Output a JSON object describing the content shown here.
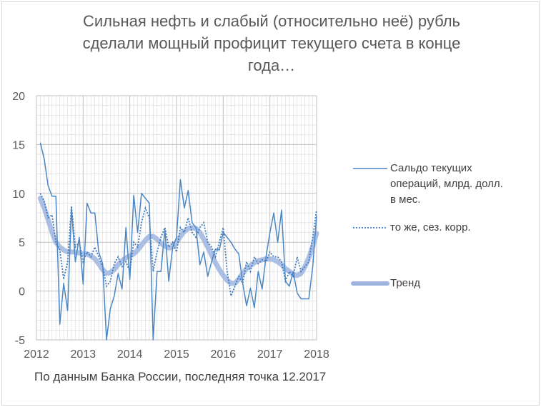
{
  "title_lines": [
    "Сильная нефть и слабый (относительно неё) рубль",
    "сделали мощный профицит текущего счета в конце",
    "года…"
  ],
  "source_note": "По данным Банка России, последняя точка 12.2017",
  "colors": {
    "monthly": "#4a86c5",
    "seasonal": "#3f7ac0",
    "trend": "#9db4e0",
    "grid": "#d9d9d9",
    "major_grid": "#bfbfbf",
    "axis_text": "#595959"
  },
  "legend": [
    {
      "label_lines": [
        "Сальдо текущих",
        "операций, млрд. долл.",
        "в мес."
      ],
      "style": "solid-thin"
    },
    {
      "label_lines": [
        "то же, сез. корр."
      ],
      "style": "dotted"
    },
    {
      "label_lines": [
        "Тренд"
      ],
      "style": "thick"
    }
  ],
  "chart_data": {
    "type": "line",
    "title": "Сильная нефть и слабый (относительно неё) рубль сделали мощный профицит текущего счета в конце года…",
    "xlabel": "",
    "ylabel": "",
    "ylim": [
      -5,
      20
    ],
    "yticks": [
      -5,
      0,
      5,
      10,
      15,
      20
    ],
    "x_ticklabels": [
      "2012",
      "2013",
      "2014",
      "2015",
      "2016",
      "2017",
      "2018"
    ],
    "x_start": "2012-01",
    "x_end": "2018-01",
    "grid": true,
    "legend_position": "right",
    "x": [
      "2012-01",
      "2012-02",
      "2012-03",
      "2012-04",
      "2012-05",
      "2012-06",
      "2012-07",
      "2012-08",
      "2012-09",
      "2012-10",
      "2012-11",
      "2012-12",
      "2013-01",
      "2013-02",
      "2013-03",
      "2013-04",
      "2013-05",
      "2013-06",
      "2013-07",
      "2013-08",
      "2013-09",
      "2013-10",
      "2013-11",
      "2013-12",
      "2014-01",
      "2014-02",
      "2014-03",
      "2014-04",
      "2014-05",
      "2014-06",
      "2014-07",
      "2014-08",
      "2014-09",
      "2014-10",
      "2014-11",
      "2014-12",
      "2015-01",
      "2015-02",
      "2015-03",
      "2015-04",
      "2015-05",
      "2015-06",
      "2015-07",
      "2015-08",
      "2015-09",
      "2015-10",
      "2015-11",
      "2015-12",
      "2016-01",
      "2016-02",
      "2016-03",
      "2016-04",
      "2016-05",
      "2016-06",
      "2016-07",
      "2016-08",
      "2016-09",
      "2016-10",
      "2016-11",
      "2016-12",
      "2017-01",
      "2017-02",
      "2017-03",
      "2017-04",
      "2017-05",
      "2017-06",
      "2017-07",
      "2017-08",
      "2017-09",
      "2017-10",
      "2017-11",
      "2017-12"
    ],
    "series": [
      {
        "name": "Сальдо текущих операций, млрд. долл. в мес.",
        "style": "solid",
        "values": [
          15.2,
          13.5,
          10.8,
          9.7,
          9.7,
          -3.4,
          0.8,
          -2.0,
          8.5,
          3.0,
          5.5,
          0.7,
          9.0,
          8.0,
          8.0,
          4.0,
          2.8,
          -5.0,
          -1.8,
          -0.5,
          1.8,
          0.2,
          6.5,
          1.2,
          9.8,
          6.0,
          10.0,
          9.5,
          9.0,
          -5.0,
          2.0,
          2.0,
          6.3,
          1.0,
          4.5,
          5.5,
          11.4,
          8.5,
          10.3,
          7.0,
          6.5,
          2.7,
          4.0,
          1.5,
          3.0,
          4.3,
          4.2,
          6.0,
          5.5,
          5.0,
          4.3,
          3.8,
          0.8,
          -1.5,
          0.3,
          -1.7,
          2.0,
          0.2,
          3.5,
          6.0,
          8.0,
          5.0,
          8.3,
          1.0,
          0.5,
          2.0,
          -0.2,
          -0.8,
          -0.8,
          -0.8,
          2.5,
          7.7
        ]
      },
      {
        "name": "то же, сез. корр.",
        "style": "dotted",
        "values": [
          10.0,
          9.2,
          7.5,
          7.8,
          5.0,
          4.2,
          1.2,
          3.0,
          8.7,
          4.5,
          5.0,
          3.0,
          4.0,
          3.5,
          4.5,
          3.5,
          2.5,
          0.5,
          1.0,
          2.8,
          3.5,
          2.5,
          3.0,
          2.0,
          5.0,
          4.5,
          7.0,
          8.5,
          7.5,
          2.0,
          4.0,
          5.5,
          6.5,
          4.5,
          5.0,
          4.0,
          6.5,
          6.0,
          7.5,
          6.0,
          5.5,
          6.5,
          7.0,
          5.0,
          4.5,
          3.5,
          5.0,
          6.5,
          2.0,
          -0.5,
          0.5,
          1.5,
          0.8,
          3.0,
          2.0,
          3.5,
          2.8,
          3.2,
          3.0,
          4.0,
          3.5,
          3.5,
          3.0,
          1.0,
          2.0,
          1.5,
          3.5,
          2.0,
          2.5,
          3.0,
          5.5,
          8.3
        ]
      },
      {
        "name": "Тренд",
        "style": "thick",
        "values": [
          9.5,
          8.5,
          7.3,
          6.0,
          5.0,
          4.5,
          4.2,
          4.0,
          4.0,
          4.0,
          3.9,
          3.8,
          3.8,
          3.6,
          3.3,
          2.8,
          2.2,
          1.8,
          1.9,
          2.2,
          2.7,
          3.1,
          3.4,
          3.6,
          3.8,
          4.2,
          4.7,
          5.2,
          5.6,
          5.6,
          5.3,
          4.9,
          4.6,
          4.4,
          4.5,
          5.0,
          5.6,
          6.1,
          6.4,
          6.5,
          6.4,
          6.0,
          5.3,
          4.5,
          3.7,
          2.9,
          2.2,
          1.6,
          1.1,
          0.8,
          0.8,
          1.2,
          1.8,
          2.3,
          2.6,
          2.9,
          3.1,
          3.2,
          3.3,
          3.3,
          3.2,
          3.0,
          2.7,
          2.3,
          2.0,
          1.7,
          1.6,
          1.8,
          2.5,
          3.4,
          4.6,
          5.9
        ]
      }
    ]
  }
}
